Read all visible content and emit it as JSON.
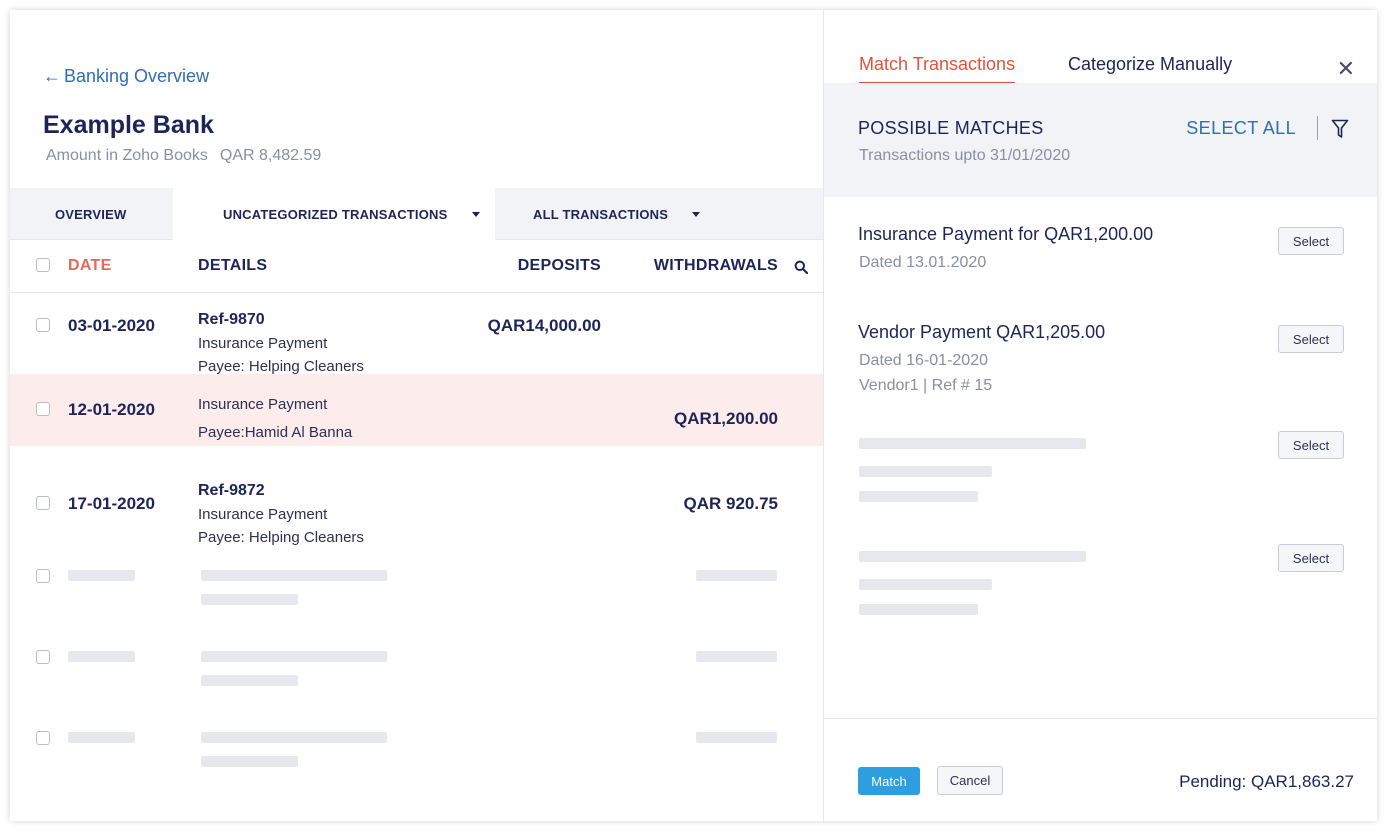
{
  "header": {
    "back_label": "Banking Overview",
    "bank_name": "Example Bank",
    "amount_label": "Amount in Zoho Books",
    "amount_value": "QAR 8,482.59"
  },
  "tabs": {
    "overview": "OVERVIEW",
    "uncategorized": "UNCATEGORIZED TRANSACTIONS",
    "all": "ALL TRANSACTIONS"
  },
  "table": {
    "columns": {
      "date": "DATE",
      "details": "DETAILS",
      "deposits": "DEPOSITS",
      "withdrawals": "WITHDRAWALS"
    },
    "rows": [
      {
        "date": "03-01-2020",
        "ref": "Ref-9870",
        "line1": "Insurance Payment",
        "line2": "Payee: Helping Cleaners",
        "deposit": "QAR14,000.00",
        "withdrawal": ""
      },
      {
        "date": "12-01-2020",
        "ref": "",
        "line1": "Insurance Payment",
        "line2": "Payee:Hamid Al Banna",
        "deposit": "",
        "withdrawal": "QAR1,200.00"
      },
      {
        "date": "17-01-2020",
        "ref": "Ref-9872",
        "line1": "Insurance Payment",
        "line2": "Payee: Helping Cleaners",
        "deposit": "",
        "withdrawal": "QAR 920.75"
      }
    ]
  },
  "panel": {
    "tab_match": "Match Transactions",
    "tab_manual": "Categorize Manually",
    "heading": "POSSIBLE MATCHES",
    "subheading": "Transactions upto 31/01/2020",
    "select_all": "SELECT ALL",
    "matches": [
      {
        "title": "Insurance Payment for QAR1,200.00",
        "line1": "Dated 13.01.2020",
        "line2": "",
        "button": "Select"
      },
      {
        "title": "Vendor Payment QAR1,205.00",
        "line1": "Dated  16-01-2020",
        "line2": "Vendor1 | Ref # 15",
        "button": "Select"
      }
    ],
    "placeholder_button_1": "Select",
    "placeholder_button_2": "Select",
    "match_button": "Match",
    "cancel_button": "Cancel",
    "pending": "Pending: QAR1,863.27"
  },
  "colors": {
    "accent_red": "#e2533b",
    "link_blue": "#2f6db5",
    "primary_button": "#2d9fe0",
    "highlight_row": "#fdecec",
    "navy_text": "#1e2458"
  },
  "icons": [
    "back-arrow-icon",
    "caret-down-icon",
    "search-icon",
    "close-icon",
    "filter-icon",
    "checkbox-icon"
  ]
}
